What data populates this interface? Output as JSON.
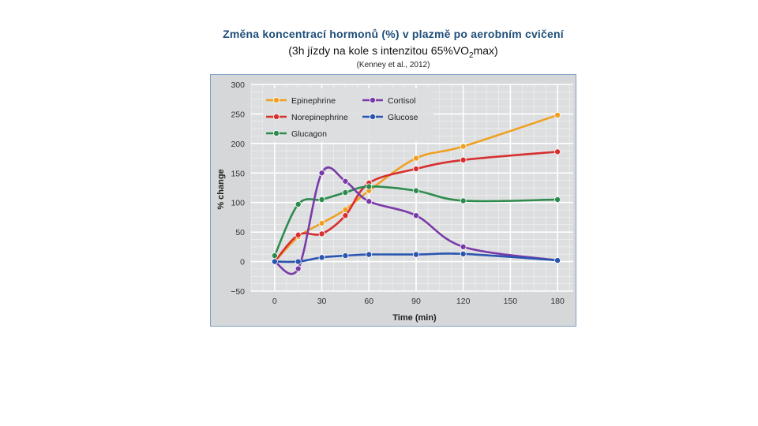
{
  "header": {
    "title": "Změna koncentrací hormonů (%) v plazmě po aerobním cvičení",
    "subtitle_main": "(3h jízdy na kole s intenzitou 65%VO",
    "subtitle_sub": "2",
    "subtitle_end": "max)",
    "credit": "(Kenney et al., 2012)"
  },
  "chart_data": {
    "type": "line",
    "xlabel": "Time (min)",
    "ylabel": "% change",
    "x_ticks": [
      0,
      30,
      60,
      90,
      120,
      150,
      180
    ],
    "y_ticks": [
      -50,
      0,
      50,
      100,
      150,
      200,
      250,
      300
    ],
    "xlim": [
      -15,
      190
    ],
    "ylim": [
      -50,
      300
    ],
    "grid": true,
    "legend_position": "top-left",
    "series": [
      {
        "name": "Epinephrine",
        "color": "#f0a020",
        "x": [
          0,
          15,
          30,
          45,
          60,
          90,
          120,
          180
        ],
        "y": [
          0,
          42,
          65,
          88,
          120,
          175,
          195,
          248
        ]
      },
      {
        "name": "Norepinephrine",
        "color": "#d83030",
        "x": [
          0,
          15,
          30,
          45,
          60,
          90,
          120,
          180
        ],
        "y": [
          0,
          45,
          47,
          78,
          133,
          157,
          172,
          186
        ]
      },
      {
        "name": "Glucagon",
        "color": "#2e8b4e",
        "x": [
          0,
          15,
          30,
          45,
          60,
          90,
          120,
          180
        ],
        "y": [
          10,
          97,
          105,
          117,
          127,
          120,
          103,
          105
        ]
      },
      {
        "name": "Cortisol",
        "color": "#7a3aa8",
        "x": [
          0,
          15,
          30,
          45,
          60,
          90,
          120,
          180
        ],
        "y": [
          0,
          -12,
          150,
          136,
          102,
          78,
          25,
          2
        ]
      },
      {
        "name": "Glucose",
        "color": "#2a55b0",
        "x": [
          0,
          15,
          30,
          45,
          60,
          90,
          120,
          180
        ],
        "y": [
          0,
          0,
          7,
          10,
          12,
          12,
          13,
          2
        ]
      }
    ]
  }
}
